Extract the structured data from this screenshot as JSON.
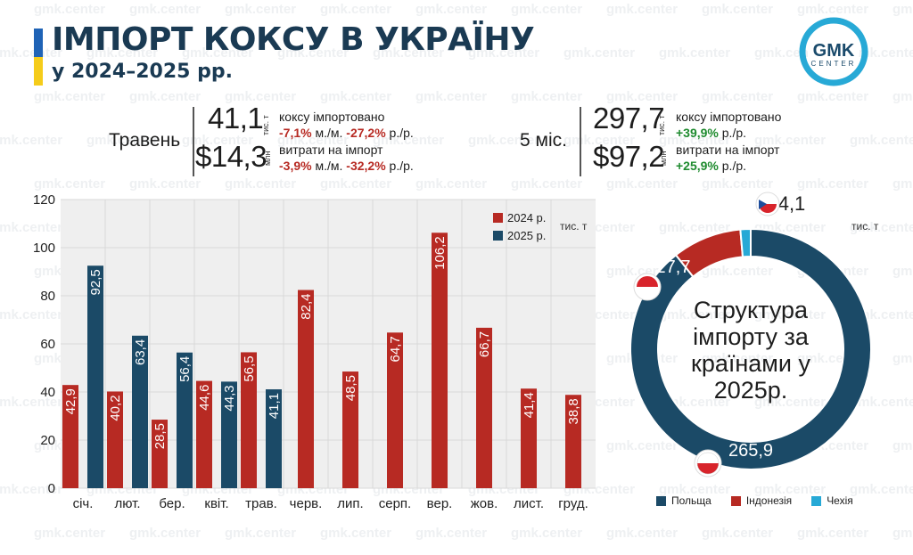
{
  "header": {
    "title": "ІМПОРТ КОКСУ В УКРАЇНУ",
    "subtitle": "у 2024–2025 рр.",
    "logo_text": "GMK",
    "logo_subtext": "CENTER",
    "watermark": "gmk.center"
  },
  "summary": {
    "may": {
      "label": "Травень",
      "volume": "41,1",
      "volume_unit": "тис. т",
      "volume_desc": "коксу імпортовано",
      "volume_change_mm": "-7,1%",
      "volume_change_mm_suffix": " м./м. ",
      "volume_change_yy": "-27,2%",
      "volume_change_yy_suffix": " р./р.",
      "cost": "$14,3",
      "cost_unit": "млн",
      "cost_desc": "витрати на імпорт",
      "cost_change_mm": "-3,9%",
      "cost_change_mm_suffix": " м./м. ",
      "cost_change_yy": "-32,2%",
      "cost_change_yy_suffix": " р./р."
    },
    "five_months": {
      "label": "5 міс.",
      "volume": "297,7",
      "volume_unit": "тис. т",
      "volume_desc": "коксу імпортовано",
      "volume_change_yy": "+39,9%",
      "volume_change_yy_suffix": " р./р.",
      "cost": "$97,2",
      "cost_unit": "млн",
      "cost_desc": "витрати на імпорт",
      "cost_change_yy": "+25,9%",
      "cost_change_yy_suffix": " р./р."
    }
  },
  "colors": {
    "series_2024": "#b72a23",
    "series_2025": "#1b4a67",
    "poland": "#1b4a67",
    "indonesia": "#b72a23",
    "czech": "#27a9d6",
    "chart_bg": "#efefef",
    "grid": "#d8d8d8"
  },
  "chart_data": [
    {
      "type": "bar",
      "unit": "тис. т",
      "categories": [
        "січ.",
        "лют.",
        "бер.",
        "квіт.",
        "трав.",
        "черв.",
        "лип.",
        "серп.",
        "вер.",
        "жов.",
        "лист.",
        "груд."
      ],
      "series": [
        {
          "name": "2024 р.",
          "values": [
            42.9,
            40.2,
            28.5,
            44.6,
            56.5,
            82.4,
            48.5,
            64.7,
            106.2,
            66.7,
            41.4,
            38.8
          ],
          "labels": [
            "42,9",
            "40,2",
            "28,5",
            "44,6",
            "56,5",
            "82,4",
            "48,5",
            "64,7",
            "106,2",
            "66,7",
            "41,4",
            "38,8"
          ]
        },
        {
          "name": "2025 р.",
          "values": [
            92.5,
            63.4,
            56.4,
            44.3,
            41.1,
            null,
            null,
            null,
            null,
            null,
            null,
            null
          ],
          "labels": [
            "92,5",
            "63,4",
            "56,4",
            "44,3",
            "41,1",
            "",
            "",
            "",
            "",
            "",
            "",
            ""
          ]
        }
      ],
      "ylim": [
        0,
        120
      ],
      "yticks": [
        0,
        20,
        40,
        60,
        80,
        100,
        120
      ],
      "grid": true,
      "legend": "top-right"
    },
    {
      "type": "pie",
      "variant": "donut",
      "title": "Структура імпорту за країнами у 2025р.",
      "unit": "тис. т",
      "slices": [
        {
          "name": "Польща",
          "value": 265.9,
          "label": "265,9"
        },
        {
          "name": "Індонезія",
          "value": 27.7,
          "label": "27,7"
        },
        {
          "name": "Чехія",
          "value": 4.1,
          "label": "4,1"
        }
      ],
      "legend": "bottom"
    }
  ]
}
